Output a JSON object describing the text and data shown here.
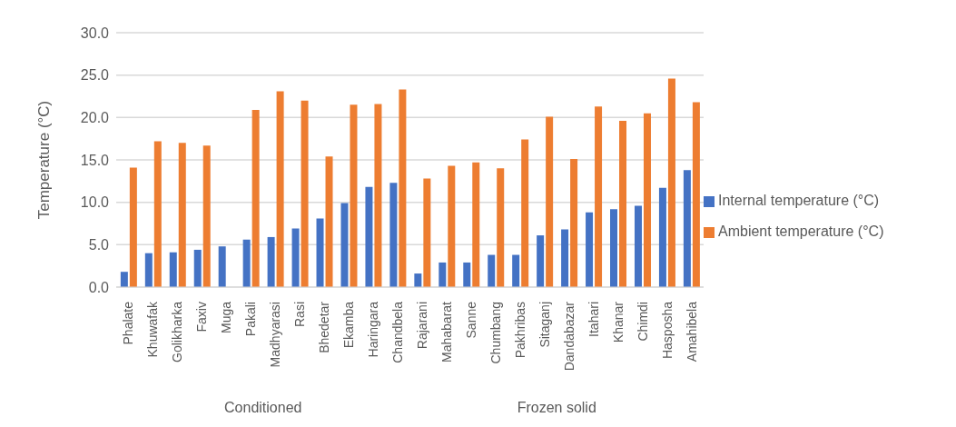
{
  "chart_data": {
    "type": "bar",
    "ylabel": "Temperature (°C)",
    "categories": [
      "Phalate",
      "Khuwafak",
      "Golikharka",
      "Faxiv",
      "Muga",
      "Pakali",
      "Madhyarasi",
      "Rasi",
      "Bhedetar",
      "Ekamba",
      "Haringara",
      "Chandbela",
      "Rajarani",
      "Mahabarat",
      "Sanne",
      "Chumbang",
      "Pakhribas",
      "Sitaganj",
      "Dandabazar",
      "Itahari",
      "Khanar",
      "Chimdi",
      "Hasposha",
      "Amahibela"
    ],
    "series": [
      {
        "name": "Internal temperature (°C)",
        "color": "#4472c4",
        "values": [
          1.8,
          4.0,
          4.1,
          4.4,
          4.8,
          5.6,
          5.9,
          6.9,
          8.1,
          9.9,
          11.8,
          12.3,
          1.6,
          2.9,
          2.9,
          3.8,
          3.8,
          6.1,
          6.8,
          8.8,
          9.2,
          9.6,
          11.7,
          13.8
        ]
      },
      {
        "name": "Ambient temperature (°C)",
        "color": "#ed7d31",
        "values": [
          14.1,
          17.2,
          17.0,
          16.7,
          null,
          20.9,
          23.1,
          22.0,
          15.4,
          21.5,
          21.6,
          23.3,
          12.8,
          14.3,
          14.7,
          14.0,
          17.4,
          20.1,
          15.1,
          21.3,
          19.6,
          20.5,
          24.6,
          21.8
        ]
      }
    ],
    "ylim": [
      0,
      30
    ],
    "yticks": [
      {
        "value": 0,
        "label": "0.0"
      },
      {
        "value": 5,
        "label": "5.0"
      },
      {
        "value": 10,
        "label": "10.0"
      },
      {
        "value": 15,
        "label": "15.0"
      },
      {
        "value": 20,
        "label": "20.0"
      },
      {
        "value": 25,
        "label": "25.0"
      },
      {
        "value": 30,
        "label": "30.0"
      }
    ],
    "grid": "y",
    "legend": "right",
    "annotations": [
      "Conditioned",
      "Frozen solid"
    ]
  }
}
